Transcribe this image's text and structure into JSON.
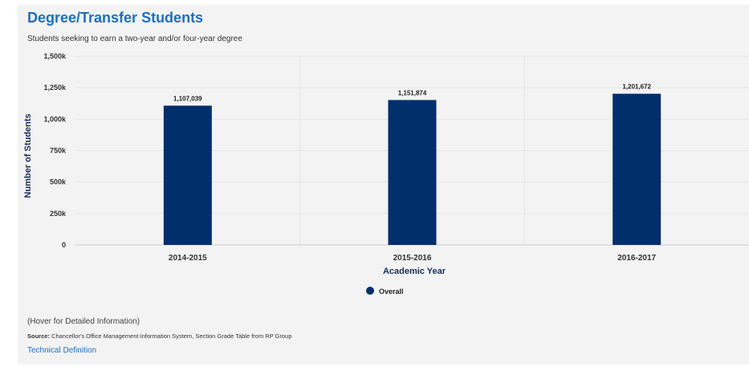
{
  "header": {
    "title": "Degree/Transfer Students",
    "subtitle": "Students seeking to earn a two-year and/or four-year degree"
  },
  "footer": {
    "hover_note": "(Hover for Detailed Information)",
    "source_label": "Source:",
    "source_text": "Chancellor's Office Management Information System, Section Grade Table from RP Group",
    "technical_definition": "Technical Definition"
  },
  "colors": {
    "bar": "#002f6c",
    "title": "#1f6fbe",
    "panel": "#f3f3f3"
  },
  "chart_data": {
    "type": "bar",
    "title": "Degree/Transfer Students",
    "subtitle": "Students seeking to earn a two-year and/or four-year degree",
    "xlabel": "Academic Year",
    "ylabel": "Number of Students",
    "categories": [
      "2014-2015",
      "2015-2016",
      "2016-2017"
    ],
    "series": [
      {
        "name": "Overall",
        "values": [
          1107039,
          1151874,
          1201672
        ],
        "labels": [
          "1,107,039",
          "1,151,874",
          "1,201,672"
        ],
        "color": "#002f6c"
      }
    ],
    "ylim": [
      0,
      1500000
    ],
    "yticks": [
      0,
      250000,
      500000,
      750000,
      1000000,
      1250000,
      1500000
    ],
    "ytick_labels": [
      "0",
      "250k",
      "500k",
      "750k",
      "1,000k",
      "1,250k",
      "1,500k"
    ],
    "grid": true,
    "legend": "bottom-center"
  }
}
